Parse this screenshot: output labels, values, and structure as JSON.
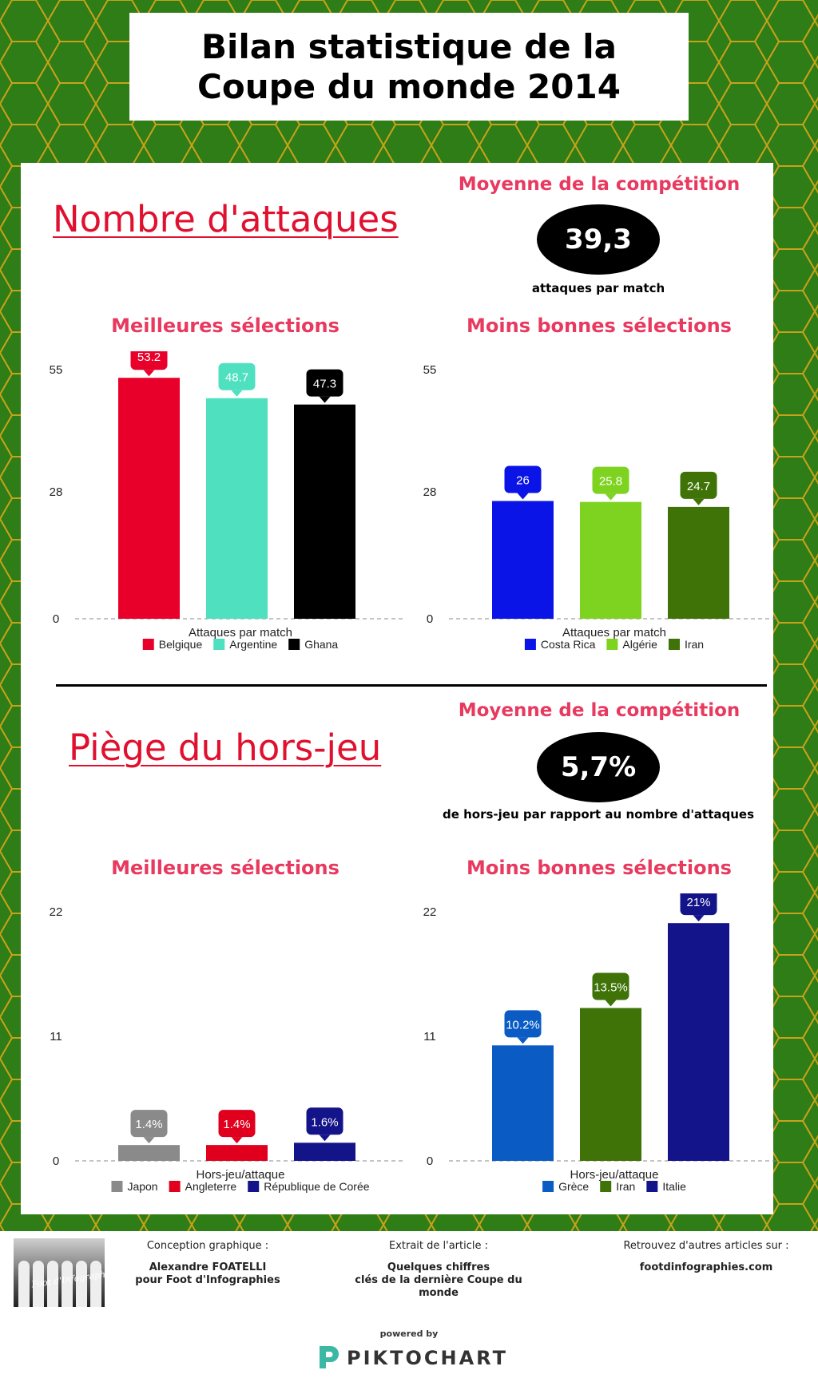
{
  "title": "Bilan statistique de la Coupe du monde 2014",
  "colors": {
    "background_green": "#2f7d16",
    "accent_red": "#e0102f",
    "accent_pink": "#e8395f"
  },
  "section1": {
    "title": "Nombre d'attaques",
    "average_label": "Moyenne de la compétition",
    "average_value": "39,3",
    "average_caption": "attaques par match"
  },
  "section2": {
    "title": "Piège du hors-jeu",
    "average_label": "Moyenne de la compétition",
    "average_value": "5,7%",
    "average_caption": "de hors-jeu par rapport au nombre d'attaques"
  },
  "chart_data": [
    {
      "type": "bar",
      "title": "Meilleures sélections",
      "xlabel": "Attaques par match",
      "yticks": [
        0,
        28,
        55
      ],
      "ylim": [
        0,
        55
      ],
      "grid": false,
      "legend": "bottom",
      "series": [
        {
          "name": "Belgique",
          "value": 53.2,
          "label": "53.2",
          "color": "#e8002a"
        },
        {
          "name": "Argentine",
          "value": 48.7,
          "label": "48.7",
          "color": "#4fe0c0"
        },
        {
          "name": "Ghana",
          "value": 47.3,
          "label": "47.3",
          "color": "#000000"
        }
      ]
    },
    {
      "type": "bar",
      "title": "Moins bonnes sélections",
      "xlabel": "Attaques par match",
      "yticks": [
        0,
        28,
        55
      ],
      "ylim": [
        0,
        55
      ],
      "grid": false,
      "legend": "bottom",
      "series": [
        {
          "name": "Costa Rica",
          "value": 26,
          "label": "26",
          "color": "#0a14e6"
        },
        {
          "name": "Algérie",
          "value": 25.8,
          "label": "25.8",
          "color": "#7ed321"
        },
        {
          "name": "Iran",
          "value": 24.7,
          "label": "24.7",
          "color": "#3f7307"
        }
      ]
    },
    {
      "type": "bar",
      "title": "Meilleures sélections",
      "xlabel": "Hors-jeu/attaque",
      "yticks": [
        0,
        11,
        22
      ],
      "ylim": [
        0,
        22
      ],
      "grid": false,
      "legend": "bottom",
      "series": [
        {
          "name": "Japon",
          "value": 1.4,
          "label": "1.4%",
          "color": "#8a8a8a"
        },
        {
          "name": "Angleterre",
          "value": 1.4,
          "label": "1.4%",
          "color": "#e0001e"
        },
        {
          "name": "République de Corée",
          "value": 1.6,
          "label": "1.6%",
          "color": "#14148a"
        }
      ]
    },
    {
      "type": "bar",
      "title": "Moins bonnes sélections",
      "xlabel": "Hors-jeu/attaque",
      "yticks": [
        0,
        11,
        22
      ],
      "ylim": [
        0,
        22
      ],
      "grid": false,
      "legend": "bottom",
      "series": [
        {
          "name": "Grèce",
          "value": 10.2,
          "label": "10.2%",
          "color": "#0a5cc4"
        },
        {
          "name": "Iran",
          "value": 13.5,
          "label": "13.5%",
          "color": "#3f7307"
        },
        {
          "name": "Italie",
          "value": 21,
          "label": "21%",
          "color": "#14148a"
        }
      ]
    }
  ],
  "footer": {
    "design_label": "Conception graphique :",
    "design_author": "Alexandre FOATELLI",
    "design_author_2": "pour Foot d'Infographies",
    "article_label": "Extrait de l'article :",
    "article_title": "Quelques chiffres",
    "article_title_2": "clés de la dernière Coupe du",
    "article_title_3": "monde",
    "more_label": "Retrouvez d'autres articles sur :",
    "more_site": "footdinfographies.com",
    "photo_logo": "Foot d'Infographies",
    "powered_by": "powered by",
    "brand": "PIKTOCHART"
  }
}
